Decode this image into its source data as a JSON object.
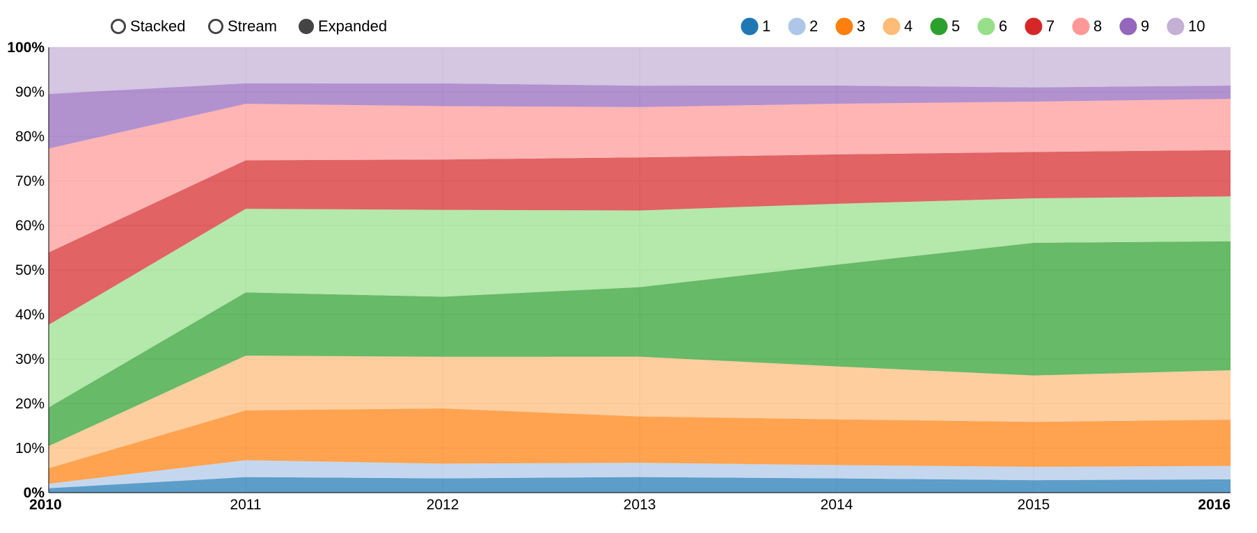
{
  "controls": {
    "options": [
      {
        "label": "Stacked",
        "selected": false
      },
      {
        "label": "Stream",
        "selected": false
      },
      {
        "label": "Expanded",
        "selected": true
      }
    ]
  },
  "chart_data": {
    "type": "area",
    "mode": "expanded",
    "x": [
      2010,
      2011,
      2012,
      2013,
      2014,
      2015,
      2016
    ],
    "x_tick_labels": [
      "2010",
      "2011",
      "2012",
      "2013",
      "2014",
      "2015",
      "2016"
    ],
    "y_tick_labels": [
      "0%",
      "10%",
      "20%",
      "30%",
      "40%",
      "50%",
      "60%",
      "70%",
      "80%",
      "90%",
      "100%"
    ],
    "ylim": [
      0,
      100
    ],
    "grid": true,
    "legend_position": "top-right",
    "series": [
      {
        "name": "1",
        "color": "#1f77b4",
        "values": [
          1.0,
          3.5,
          3.2,
          3.5,
          3.2,
          2.8,
          3.0
        ]
      },
      {
        "name": "2",
        "color": "#aec7e8",
        "values": [
          1.0,
          3.8,
          3.3,
          3.2,
          3.0,
          3.0,
          3.0
        ]
      },
      {
        "name": "3",
        "color": "#ff7f0e",
        "values": [
          3.5,
          11.2,
          12.4,
          10.4,
          10.3,
          10.1,
          10.4
        ]
      },
      {
        "name": "4",
        "color": "#ffbb78",
        "values": [
          5.0,
          12.3,
          11.6,
          13.4,
          11.9,
          10.4,
          11.1
        ]
      },
      {
        "name": "5",
        "color": "#2ca02c",
        "values": [
          8.7,
          14.2,
          13.5,
          15.6,
          22.9,
          29.8,
          29.0
        ]
      },
      {
        "name": "6",
        "color": "#98df8a",
        "values": [
          18.6,
          18.8,
          19.5,
          17.2,
          13.7,
          10.0,
          10.1
        ]
      },
      {
        "name": "7",
        "color": "#d62728",
        "values": [
          16.3,
          10.9,
          11.3,
          11.9,
          11.1,
          10.4,
          10.4
        ]
      },
      {
        "name": "8",
        "color": "#ff9896",
        "values": [
          23.4,
          12.7,
          12.0,
          11.3,
          11.4,
          11.3,
          11.5
        ]
      },
      {
        "name": "9",
        "color": "#9467bd",
        "values": [
          12.3,
          4.6,
          5.1,
          4.8,
          4.1,
          3.2,
          3.0
        ]
      },
      {
        "name": "10",
        "color": "#c5b0d5",
        "values": [
          10.5,
          8.1,
          8.1,
          8.6,
          8.6,
          9.0,
          8.6
        ]
      }
    ]
  }
}
